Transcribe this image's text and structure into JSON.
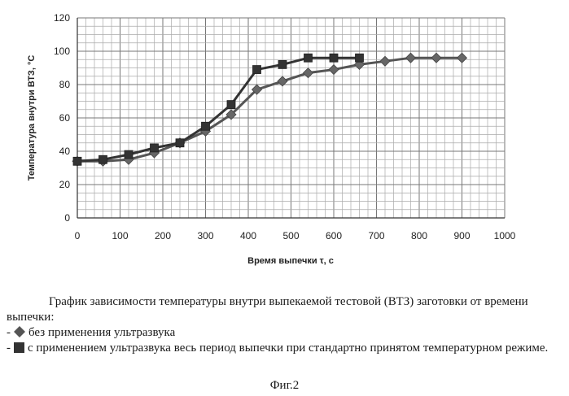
{
  "chart_data": {
    "type": "line",
    "xlabel": "Время выпечки τ, с",
    "ylabel": "Температура внутри ВТЗ, °С",
    "xlim": [
      0,
      1000
    ],
    "ylim": [
      0,
      120
    ],
    "x_ticks": [
      0,
      100,
      200,
      300,
      400,
      500,
      600,
      700,
      800,
      900,
      1000
    ],
    "y_ticks": [
      0,
      20,
      40,
      60,
      80,
      100,
      120
    ],
    "grid": true,
    "series": [
      {
        "marker": "diamond",
        "x": [
          0,
          60,
          120,
          180,
          240,
          300,
          360,
          420,
          480,
          540,
          600,
          660,
          720,
          780,
          840,
          900
        ],
        "y": [
          34,
          34,
          35,
          39,
          45,
          52,
          62,
          77,
          82,
          87,
          89,
          92,
          94,
          96,
          96,
          96
        ]
      },
      {
        "marker": "square",
        "x": [
          0,
          60,
          120,
          180,
          240,
          300,
          360,
          420,
          480,
          540,
          600,
          660
        ],
        "y": [
          34,
          35,
          38,
          42,
          45,
          55,
          68,
          89,
          92,
          96,
          96,
          96
        ]
      }
    ]
  },
  "caption": {
    "line1": "График зависимости температуры внутри выпекаемой тестовой (ВТЗ) заготовки от времени выпечки:",
    "item1_prefix": "-",
    "item1_text": "без применения ультразвука",
    "item2_prefix": "-",
    "item2_text": "с применением ультразвука весь период выпечки при стандартно принятом температурном режиме."
  },
  "figure_label": "Фиг.2"
}
